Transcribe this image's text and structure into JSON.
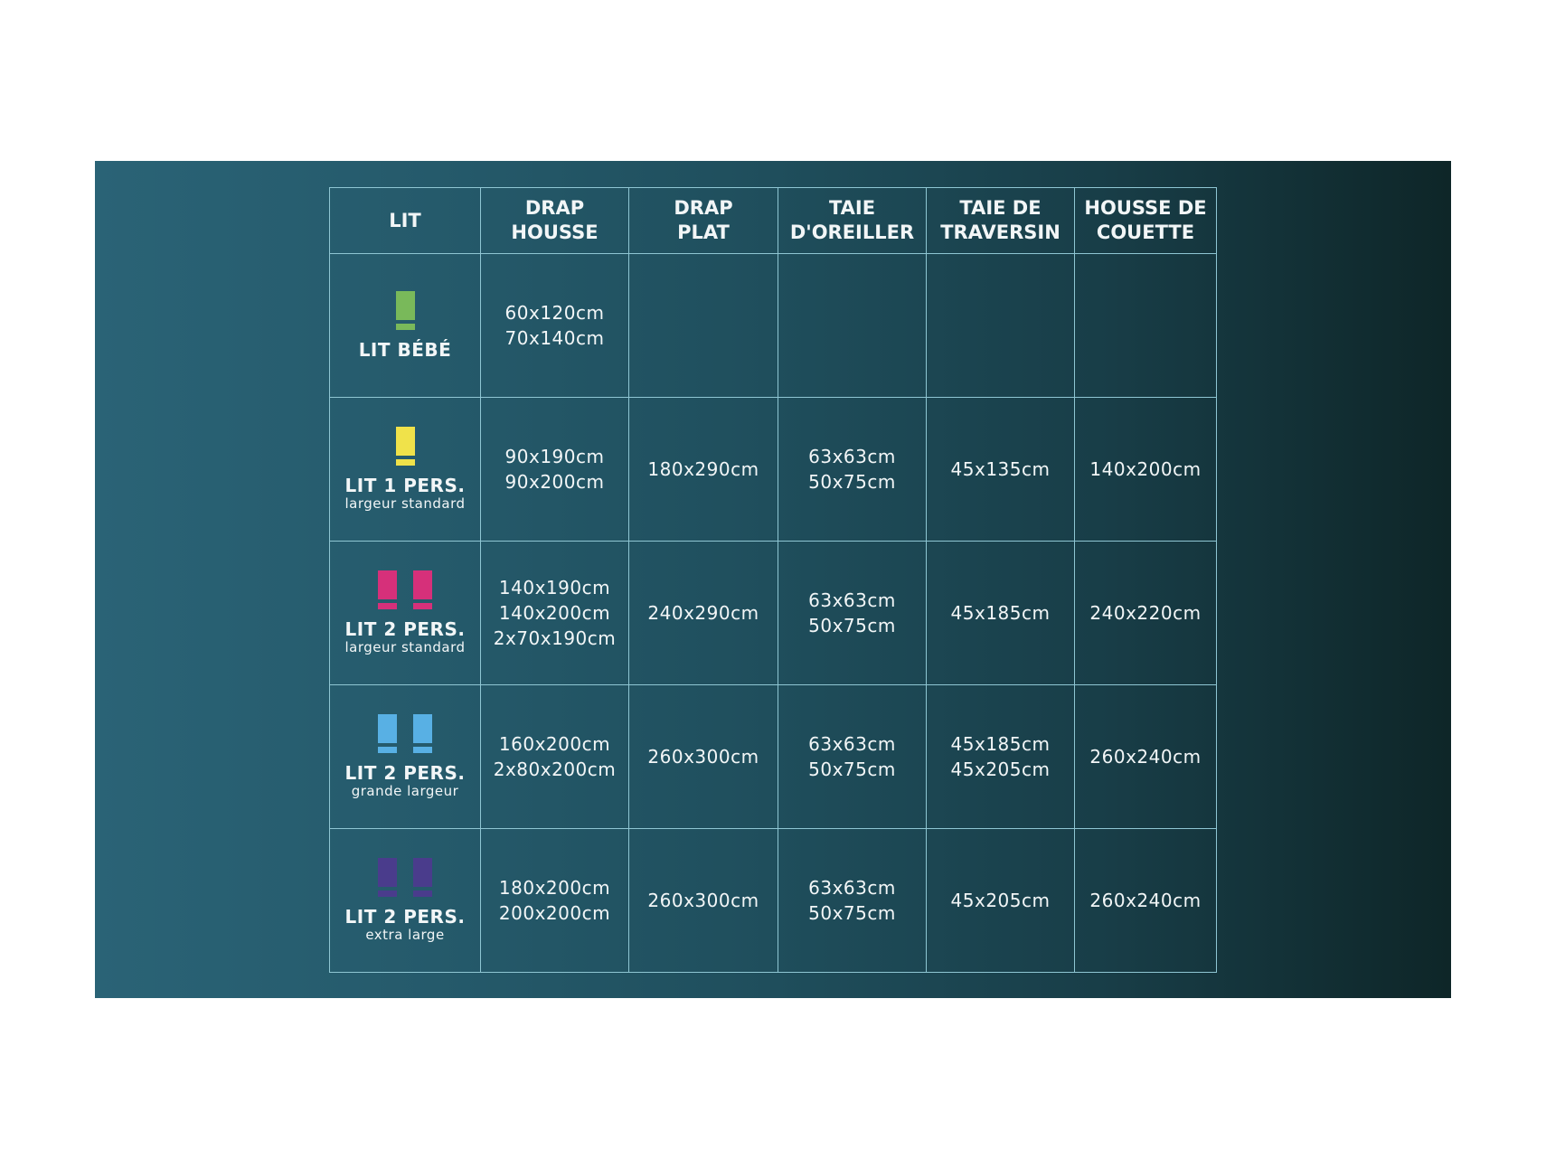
{
  "headers": [
    [
      "LIT"
    ],
    [
      "DRAP",
      "HOUSSE"
    ],
    [
      "DRAP",
      "PLAT"
    ],
    [
      "TAIE",
      "D'OREILLER"
    ],
    [
      "TAIE DE",
      "TRAVERSIN"
    ],
    [
      "HOUSSE DE",
      "COUETTE"
    ]
  ],
  "rows": [
    {
      "bed": "LIT BÉBÉ",
      "sub": "",
      "icon_color": "#79b95a",
      "icon_count": 1,
      "cells": [
        [
          "60x120cm",
          "70x140cm"
        ],
        [],
        [],
        [],
        []
      ]
    },
    {
      "bed": "LIT 1 PERS.",
      "sub": "largeur standard",
      "icon_color": "#f0e24a",
      "icon_count": 1,
      "cells": [
        [
          "90x190cm",
          "90x200cm"
        ],
        [
          "180x290cm"
        ],
        [
          "63x63cm",
          "50x75cm"
        ],
        [
          "45x135cm"
        ],
        [
          "140x200cm"
        ]
      ]
    },
    {
      "bed": "LIT 2 PERS.",
      "sub": "largeur standard",
      "icon_color": "#d6307a",
      "icon_count": 2,
      "cells": [
        [
          "140x190cm",
          "140x200cm",
          "2x70x190cm"
        ],
        [
          "240x290cm"
        ],
        [
          "63x63cm",
          "50x75cm"
        ],
        [
          "45x185cm"
        ],
        [
          "240x220cm"
        ]
      ]
    },
    {
      "bed": "LIT 2 PERS.",
      "sub": "grande largeur",
      "icon_color": "#58b0e4",
      "icon_count": 2,
      "cells": [
        [
          "160x200cm",
          "2x80x200cm"
        ],
        [
          "260x300cm"
        ],
        [
          "63x63cm",
          "50x75cm"
        ],
        [
          "45x185cm",
          "45x205cm"
        ],
        [
          "260x240cm"
        ]
      ]
    },
    {
      "bed": "LIT 2 PERS.",
      "sub": "extra large",
      "icon_color": "#4a3c8c",
      "icon_count": 2,
      "cells": [
        [
          "180x200cm",
          "200x200cm"
        ],
        [
          "260x300cm"
        ],
        [
          "63x63cm",
          "50x75cm"
        ],
        [
          "45x205cm"
        ],
        [
          "260x240cm"
        ]
      ]
    }
  ],
  "colors": {
    "grid": "#8fc6d3",
    "text": "#f2f6f7",
    "bg_left": "#2a6376",
    "bg_right": "#0e2628"
  }
}
